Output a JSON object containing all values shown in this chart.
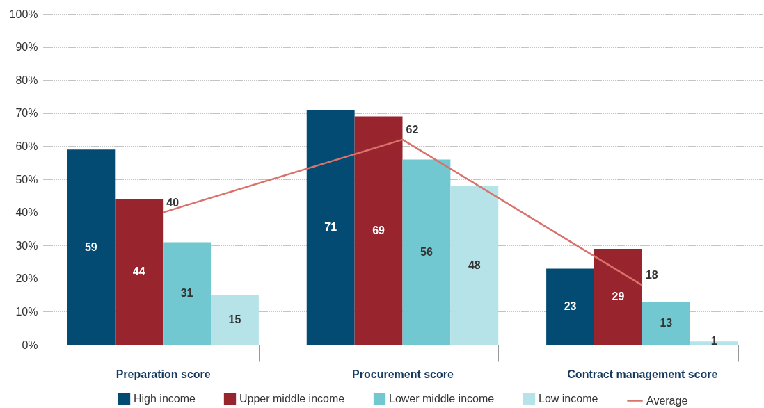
{
  "chart_data": {
    "type": "bar",
    "categories": [
      "Preparation score",
      "Procurement score",
      "Contract management score"
    ],
    "series": [
      {
        "name": "High income",
        "color": "#034b73",
        "values": [
          59,
          71,
          23
        ]
      },
      {
        "name": "Upper middle income",
        "color": "#98242e",
        "values": [
          44,
          69,
          29
        ]
      },
      {
        "name": "Lower middle income",
        "color": "#72c8d0",
        "values": [
          31,
          56,
          13
        ]
      },
      {
        "name": "Low income",
        "color": "#b6e3e7",
        "values": [
          15,
          48,
          1
        ]
      },
      {
        "name": "Average",
        "type": "line",
        "color": "#d9726b",
        "values": [
          40,
          62,
          18
        ]
      }
    ],
    "ylim": [
      0,
      100
    ],
    "yticks": [
      {
        "value": 0,
        "label": "0%"
      },
      {
        "value": 10,
        "label": "10%"
      },
      {
        "value": 20,
        "label": "20%"
      },
      {
        "value": 30,
        "label": "30%"
      },
      {
        "value": 40,
        "label": "40%"
      },
      {
        "value": 50,
        "label": "50%"
      },
      {
        "value": 60,
        "label": "60%"
      },
      {
        "value": 70,
        "label": "70%"
      },
      {
        "value": 80,
        "label": "80%"
      },
      {
        "value": 90,
        "label": "90%"
      },
      {
        "value": 100,
        "label": "100%"
      }
    ],
    "grid": "y",
    "legend": "bottom",
    "data_labels": true,
    "marker": "none",
    "line_style": "solid"
  }
}
